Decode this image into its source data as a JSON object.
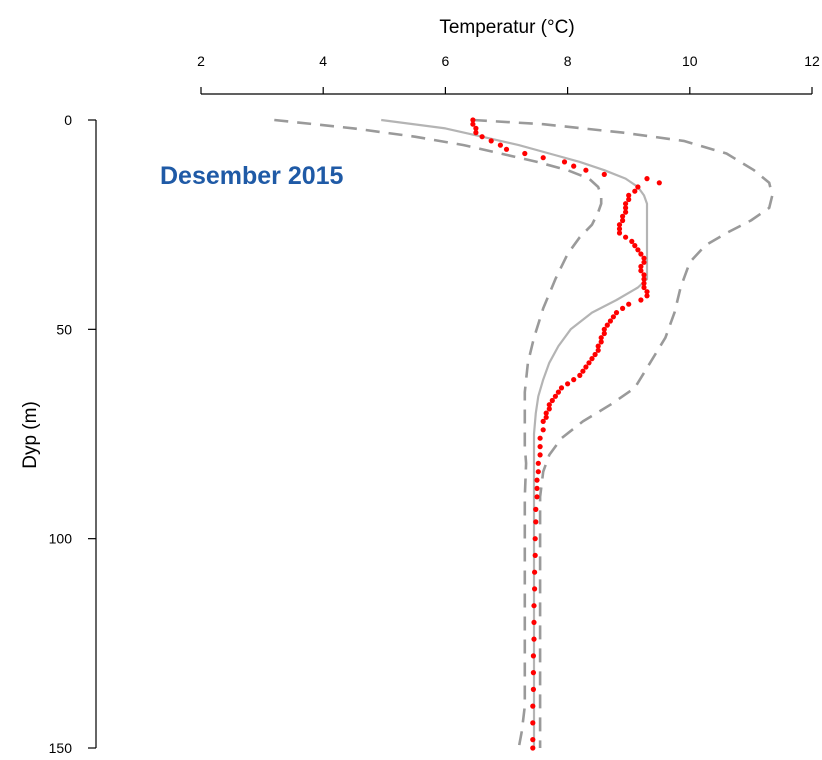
{
  "chart_data": {
    "type": "scatter",
    "xlabel": "Temperatur (°C)",
    "ylabel": "Dyp (m)",
    "xlim": [
      2,
      12
    ],
    "ylim": [
      150,
      0
    ],
    "xticks": [
      2,
      4,
      6,
      8,
      10,
      12
    ],
    "yticks": [
      0,
      50,
      100,
      150
    ],
    "x_axis_position": "top",
    "y_axis_inverted": true,
    "grid": false,
    "legend": "none",
    "annotation": "Desember 2015",
    "colors": {
      "observed": "#ff0000",
      "mean": "#b4b4b4",
      "envelope": "#9a9a9a",
      "annotation": "#1f5aa6"
    },
    "series": [
      {
        "style": "points",
        "color": "#ff0000",
        "points": [
          [
            6.45,
            0
          ],
          [
            6.45,
            1
          ],
          [
            6.5,
            2
          ],
          [
            6.5,
            3
          ],
          [
            6.6,
            4
          ],
          [
            6.75,
            5
          ],
          [
            6.9,
            6
          ],
          [
            7.0,
            7
          ],
          [
            7.3,
            8
          ],
          [
            7.6,
            9
          ],
          [
            7.95,
            10
          ],
          [
            8.1,
            11
          ],
          [
            8.3,
            12
          ],
          [
            8.6,
            13
          ],
          [
            9.3,
            14
          ],
          [
            9.5,
            15
          ],
          [
            9.15,
            16
          ],
          [
            9.1,
            17
          ],
          [
            9.0,
            18
          ],
          [
            9.0,
            19
          ],
          [
            8.95,
            20
          ],
          [
            8.95,
            21
          ],
          [
            8.95,
            22
          ],
          [
            8.9,
            23
          ],
          [
            8.9,
            24
          ],
          [
            8.85,
            25
          ],
          [
            8.85,
            26
          ],
          [
            8.85,
            27
          ],
          [
            8.95,
            28
          ],
          [
            9.05,
            29
          ],
          [
            9.1,
            30
          ],
          [
            9.15,
            31
          ],
          [
            9.2,
            32
          ],
          [
            9.25,
            33
          ],
          [
            9.25,
            34
          ],
          [
            9.2,
            35
          ],
          [
            9.2,
            36
          ],
          [
            9.25,
            37
          ],
          [
            9.25,
            38
          ],
          [
            9.25,
            39
          ],
          [
            9.25,
            40
          ],
          [
            9.3,
            41
          ],
          [
            9.3,
            42
          ],
          [
            9.2,
            43
          ],
          [
            9.0,
            44
          ],
          [
            8.9,
            45
          ],
          [
            8.8,
            46
          ],
          [
            8.75,
            47
          ],
          [
            8.7,
            48
          ],
          [
            8.65,
            49
          ],
          [
            8.6,
            50
          ],
          [
            8.6,
            51
          ],
          [
            8.55,
            52
          ],
          [
            8.55,
            53
          ],
          [
            8.5,
            54
          ],
          [
            8.5,
            55
          ],
          [
            8.45,
            56
          ],
          [
            8.4,
            57
          ],
          [
            8.35,
            58
          ],
          [
            8.3,
            59
          ],
          [
            8.25,
            60
          ],
          [
            8.2,
            61
          ],
          [
            8.1,
            62
          ],
          [
            8.0,
            63
          ],
          [
            7.9,
            64
          ],
          [
            7.85,
            65
          ],
          [
            7.8,
            66
          ],
          [
            7.75,
            67
          ],
          [
            7.7,
            68
          ],
          [
            7.7,
            69
          ],
          [
            7.65,
            70
          ],
          [
            7.65,
            71
          ],
          [
            7.6,
            72
          ],
          [
            7.6,
            74
          ],
          [
            7.55,
            76
          ],
          [
            7.55,
            78
          ],
          [
            7.55,
            80
          ],
          [
            7.52,
            82
          ],
          [
            7.52,
            84
          ],
          [
            7.5,
            86
          ],
          [
            7.5,
            88
          ],
          [
            7.5,
            90
          ],
          [
            7.48,
            93
          ],
          [
            7.48,
            96
          ],
          [
            7.47,
            100
          ],
          [
            7.47,
            104
          ],
          [
            7.46,
            108
          ],
          [
            7.46,
            112
          ],
          [
            7.45,
            116
          ],
          [
            7.45,
            120
          ],
          [
            7.45,
            124
          ],
          [
            7.44,
            128
          ],
          [
            7.44,
            132
          ],
          [
            7.44,
            136
          ],
          [
            7.43,
            140
          ],
          [
            7.43,
            144
          ],
          [
            7.43,
            148
          ],
          [
            7.43,
            150
          ]
        ]
      },
      {
        "style": "solid-line",
        "color": "#b4b4b4",
        "points": [
          [
            4.95,
            0
          ],
          [
            6.0,
            2
          ],
          [
            6.6,
            4
          ],
          [
            7.2,
            6
          ],
          [
            7.7,
            8
          ],
          [
            8.2,
            10
          ],
          [
            8.6,
            12
          ],
          [
            8.95,
            14
          ],
          [
            9.15,
            16
          ],
          [
            9.25,
            18
          ],
          [
            9.3,
            20
          ],
          [
            9.3,
            25
          ],
          [
            9.3,
            30
          ],
          [
            9.3,
            35
          ],
          [
            9.3,
            38
          ],
          [
            9.15,
            40
          ],
          [
            8.8,
            43
          ],
          [
            8.4,
            46
          ],
          [
            8.05,
            50
          ],
          [
            7.85,
            54
          ],
          [
            7.7,
            58
          ],
          [
            7.6,
            62
          ],
          [
            7.52,
            66
          ],
          [
            7.48,
            70
          ],
          [
            7.45,
            75
          ],
          [
            7.45,
            80
          ],
          [
            7.45,
            90
          ],
          [
            7.45,
            100
          ],
          [
            7.45,
            110
          ],
          [
            7.45,
            120
          ],
          [
            7.45,
            130
          ],
          [
            7.45,
            140
          ],
          [
            7.45,
            150
          ]
        ]
      },
      {
        "style": "dashed-line",
        "color": "#9a9a9a",
        "points": [
          [
            3.2,
            0
          ],
          [
            4.5,
            2
          ],
          [
            5.5,
            4
          ],
          [
            6.3,
            6
          ],
          [
            6.9,
            8
          ],
          [
            7.5,
            10
          ],
          [
            8.0,
            12
          ],
          [
            8.35,
            14
          ],
          [
            8.5,
            16
          ],
          [
            8.55,
            18
          ],
          [
            8.55,
            20
          ],
          [
            8.5,
            22
          ],
          [
            8.4,
            25
          ],
          [
            8.2,
            28
          ],
          [
            8.0,
            32
          ],
          [
            7.8,
            38
          ],
          [
            7.6,
            45
          ],
          [
            7.45,
            52
          ],
          [
            7.35,
            58
          ],
          [
            7.3,
            65
          ],
          [
            7.3,
            72
          ],
          [
            7.3,
            78
          ],
          [
            7.32,
            82
          ],
          [
            7.3,
            90
          ],
          [
            7.3,
            100
          ],
          [
            7.3,
            110
          ],
          [
            7.3,
            120
          ],
          [
            7.3,
            130
          ],
          [
            7.3,
            140
          ],
          [
            7.25,
            146
          ],
          [
            7.2,
            150
          ]
        ]
      },
      {
        "style": "dashed-line",
        "color": "#9a9a9a",
        "points": [
          [
            6.45,
            0
          ],
          [
            7.6,
            1
          ],
          [
            8.9,
            3
          ],
          [
            9.9,
            5
          ],
          [
            10.6,
            8
          ],
          [
            11.05,
            12
          ],
          [
            11.3,
            15
          ],
          [
            11.35,
            18
          ],
          [
            11.3,
            21
          ],
          [
            11.0,
            24
          ],
          [
            10.6,
            27
          ],
          [
            10.25,
            30
          ],
          [
            10.0,
            34
          ],
          [
            9.85,
            40
          ],
          [
            9.75,
            46
          ],
          [
            9.6,
            52
          ],
          [
            9.35,
            58
          ],
          [
            9.1,
            64
          ],
          [
            8.7,
            68
          ],
          [
            8.25,
            72
          ],
          [
            7.9,
            76
          ],
          [
            7.7,
            80
          ],
          [
            7.6,
            84
          ],
          [
            7.55,
            90
          ],
          [
            7.55,
            100
          ],
          [
            7.55,
            110
          ],
          [
            7.55,
            120
          ],
          [
            7.55,
            130
          ],
          [
            7.55,
            140
          ],
          [
            7.55,
            150
          ]
        ]
      }
    ]
  }
}
